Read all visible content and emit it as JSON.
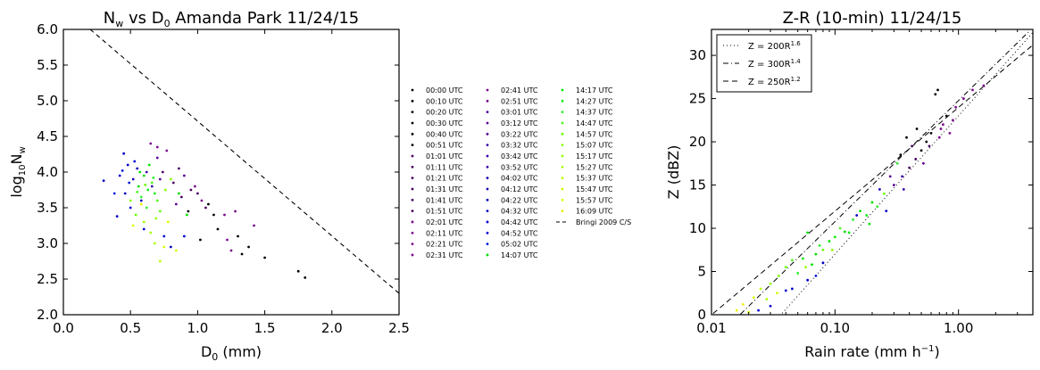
{
  "chart_data": [
    {
      "type": "scatter",
      "title": "N_w vs D_0 Amanda Park 11/24/15",
      "title_parts": {
        "n": "N",
        "n_sub": "w",
        "mid": " vs D",
        "d_sub": "0",
        "rest": " Amanda Park 11/24/15"
      },
      "xlabel": "D_0 (mm)",
      "xlabel_parts": {
        "d": "D",
        "sub": "0",
        "rest": " (mm)"
      },
      "ylabel": "log_10 N_w",
      "ylabel_parts": {
        "log": "log",
        "sub10": "10",
        "n": "N",
        "subw": "w"
      },
      "xlim": [
        0.0,
        2.5
      ],
      "ylim": [
        2.0,
        6.0
      ],
      "xticks": [
        "0.0",
        "0.5",
        "1.0",
        "1.5",
        "2.0",
        "2.5"
      ],
      "yticks": [
        "2.0",
        "2.5",
        "3.0",
        "3.5",
        "4.0",
        "4.5",
        "5.0",
        "5.5",
        "6.0"
      ],
      "reference_line": {
        "name": "Bringi 2009 C/S",
        "x": [
          0.2,
          2.5
        ],
        "y": [
          6.0,
          2.3
        ]
      },
      "legend_placement": "outside-right",
      "series": [
        {
          "name": "00:00 UTC",
          "color": "#000000"
        },
        {
          "name": "00:10 UTC",
          "color": "#000000"
        },
        {
          "name": "00:20 UTC",
          "color": "#000000"
        },
        {
          "name": "00:30 UTC",
          "color": "#000000"
        },
        {
          "name": "00:40 UTC",
          "color": "#000000"
        },
        {
          "name": "00:51 UTC",
          "color": "#000000"
        },
        {
          "name": "01:01 UTC",
          "color": "#4b0062"
        },
        {
          "name": "01:11 UTC",
          "color": "#4b0062"
        },
        {
          "name": "01:21 UTC",
          "color": "#4b0062"
        },
        {
          "name": "01:31 UTC",
          "color": "#4b0062"
        },
        {
          "name": "01:41 UTC",
          "color": "#4b0062"
        },
        {
          "name": "01:51 UTC",
          "color": "#4b0062"
        },
        {
          "name": "02:01 UTC",
          "color": "#7a0a8c"
        },
        {
          "name": "02:11 UTC",
          "color": "#7a0a8c"
        },
        {
          "name": "02:21 UTC",
          "color": "#7a0a8c"
        },
        {
          "name": "02:31 UTC",
          "color": "#7a0a8c"
        },
        {
          "name": "02:41 UTC",
          "color": "#7a0a8c"
        },
        {
          "name": "02:51 UTC",
          "color": "#7a0a8c"
        },
        {
          "name": "03:01 UTC",
          "color": "#5a0096"
        },
        {
          "name": "03:12 UTC",
          "color": "#5a0096"
        },
        {
          "name": "03:22 UTC",
          "color": "#5a0096"
        },
        {
          "name": "03:32 UTC",
          "color": "#3a00a8"
        },
        {
          "name": "03:42 UTC",
          "color": "#3a00a8"
        },
        {
          "name": "03:52 UTC",
          "color": "#3a00a8"
        },
        {
          "name": "04:02 UTC",
          "color": "#1200b4"
        },
        {
          "name": "04:12 UTC",
          "color": "#1200b4"
        },
        {
          "name": "04:22 UTC",
          "color": "#0000c0"
        },
        {
          "name": "04:32 UTC",
          "color": "#0000c8"
        },
        {
          "name": "04:42 UTC",
          "color": "#0000d0"
        },
        {
          "name": "04:52 UTC",
          "color": "#0000d8"
        },
        {
          "name": "05:02 UTC",
          "color": "#0018dd"
        },
        {
          "name": "14:07 UTC",
          "color": "#00dd00"
        },
        {
          "name": "14:17 UTC",
          "color": "#00e600"
        },
        {
          "name": "14:27 UTC",
          "color": "#10ee10"
        },
        {
          "name": "14:37 UTC",
          "color": "#30f030"
        },
        {
          "name": "14:47 UTC",
          "color": "#50f520"
        },
        {
          "name": "14:57 UTC",
          "color": "#66ff00"
        },
        {
          "name": "15:07 UTC",
          "color": "#88ff00"
        },
        {
          "name": "15:17 UTC",
          "color": "#99ff00"
        },
        {
          "name": "15:27 UTC",
          "color": "#aaff00"
        },
        {
          "name": "15:37 UTC",
          "color": "#bbff00"
        },
        {
          "name": "15:47 UTC",
          "color": "#ccff00"
        },
        {
          "name": "15:57 UTC",
          "color": "#ddff00"
        },
        {
          "name": "16:09 UTC",
          "color": "#eeee00"
        }
      ],
      "points": [
        {
          "x": 0.3,
          "y": 3.88,
          "c": "#0000c8"
        },
        {
          "x": 0.4,
          "y": 3.38,
          "c": "#0000c8"
        },
        {
          "x": 0.45,
          "y": 4.26,
          "c": "#0000c8"
        },
        {
          "x": 0.42,
          "y": 3.95,
          "c": "#0000d0"
        },
        {
          "x": 0.48,
          "y": 4.1,
          "c": "#0000d0"
        },
        {
          "x": 0.5,
          "y": 3.5,
          "c": "#0000d0"
        },
        {
          "x": 0.52,
          "y": 3.9,
          "c": "#1200b4"
        },
        {
          "x": 0.55,
          "y": 4.05,
          "c": "#1200b4"
        },
        {
          "x": 0.58,
          "y": 3.6,
          "c": "#0000c0"
        },
        {
          "x": 0.46,
          "y": 3.7,
          "c": "#0000c0"
        },
        {
          "x": 0.53,
          "y": 4.15,
          "c": "#0000d8"
        },
        {
          "x": 0.6,
          "y": 3.2,
          "c": "#0000d8"
        },
        {
          "x": 0.62,
          "y": 4.0,
          "c": "#3a00a8"
        },
        {
          "x": 0.66,
          "y": 3.8,
          "c": "#3a00a8"
        },
        {
          "x": 0.7,
          "y": 4.2,
          "c": "#5a0096"
        },
        {
          "x": 0.72,
          "y": 3.9,
          "c": "#5a0096"
        },
        {
          "x": 0.75,
          "y": 3.1,
          "c": "#0000c8"
        },
        {
          "x": 0.8,
          "y": 2.95,
          "c": "#0000c8"
        },
        {
          "x": 0.65,
          "y": 4.4,
          "c": "#7a0a8c"
        },
        {
          "x": 0.7,
          "y": 4.35,
          "c": "#7a0a8c"
        },
        {
          "x": 0.77,
          "y": 4.3,
          "c": "#7a0a8c"
        },
        {
          "x": 0.74,
          "y": 4.0,
          "c": "#4b0062"
        },
        {
          "x": 0.82,
          "y": 3.85,
          "c": "#4b0062"
        },
        {
          "x": 0.86,
          "y": 4.05,
          "c": "#4b0062"
        },
        {
          "x": 0.9,
          "y": 3.95,
          "c": "#5a0096"
        },
        {
          "x": 0.95,
          "y": 3.75,
          "c": "#4b0062"
        },
        {
          "x": 0.98,
          "y": 3.8,
          "c": "#7a0a8c"
        },
        {
          "x": 1.0,
          "y": 3.7,
          "c": "#4b0062"
        },
        {
          "x": 1.03,
          "y": 3.6,
          "c": "#7a0a8c"
        },
        {
          "x": 1.06,
          "y": 3.5,
          "c": "#4b0062"
        },
        {
          "x": 1.08,
          "y": 3.55,
          "c": "#000000"
        },
        {
          "x": 1.12,
          "y": 3.4,
          "c": "#000000"
        },
        {
          "x": 1.15,
          "y": 3.2,
          "c": "#000000"
        },
        {
          "x": 1.2,
          "y": 3.4,
          "c": "#7a0a8c"
        },
        {
          "x": 1.22,
          "y": 3.05,
          "c": "#7a0a8c"
        },
        {
          "x": 1.25,
          "y": 2.9,
          "c": "#7a0a8c"
        },
        {
          "x": 1.28,
          "y": 3.45,
          "c": "#7a0a8c"
        },
        {
          "x": 1.3,
          "y": 3.1,
          "c": "#000000"
        },
        {
          "x": 1.33,
          "y": 2.85,
          "c": "#000000"
        },
        {
          "x": 1.38,
          "y": 2.95,
          "c": "#000000"
        },
        {
          "x": 1.42,
          "y": 3.25,
          "c": "#7a0a8c"
        },
        {
          "x": 1.5,
          "y": 2.8,
          "c": "#000000"
        },
        {
          "x": 1.75,
          "y": 2.61,
          "c": "#000000"
        },
        {
          "x": 1.8,
          "y": 2.52,
          "c": "#000000"
        },
        {
          "x": 1.02,
          "y": 3.05,
          "c": "#000000"
        },
        {
          "x": 0.93,
          "y": 3.45,
          "c": "#000000"
        },
        {
          "x": 0.88,
          "y": 3.65,
          "c": "#4b0062"
        },
        {
          "x": 0.84,
          "y": 3.55,
          "c": "#5a0096"
        },
        {
          "x": 0.56,
          "y": 3.8,
          "c": "#00dd00"
        },
        {
          "x": 0.6,
          "y": 3.95,
          "c": "#00dd00"
        },
        {
          "x": 0.64,
          "y": 4.1,
          "c": "#00e600"
        },
        {
          "x": 0.68,
          "y": 3.7,
          "c": "#10ee10"
        },
        {
          "x": 0.58,
          "y": 3.65,
          "c": "#30f030"
        },
        {
          "x": 0.62,
          "y": 3.5,
          "c": "#30f030"
        },
        {
          "x": 0.66,
          "y": 3.85,
          "c": "#50f520"
        },
        {
          "x": 0.7,
          "y": 3.6,
          "c": "#50f520"
        },
        {
          "x": 0.72,
          "y": 3.45,
          "c": "#66ff00"
        },
        {
          "x": 0.54,
          "y": 3.4,
          "c": "#66ff00"
        },
        {
          "x": 0.76,
          "y": 3.75,
          "c": "#88ff00"
        },
        {
          "x": 0.8,
          "y": 3.9,
          "c": "#88ff00"
        },
        {
          "x": 0.6,
          "y": 3.3,
          "c": "#99ff00"
        },
        {
          "x": 0.65,
          "y": 3.15,
          "c": "#aaff00"
        },
        {
          "x": 0.68,
          "y": 3.0,
          "c": "#aaff00"
        },
        {
          "x": 0.72,
          "y": 2.75,
          "c": "#bbff00"
        },
        {
          "x": 0.75,
          "y": 2.95,
          "c": "#ccff00"
        },
        {
          "x": 0.84,
          "y": 2.9,
          "c": "#ccff00"
        },
        {
          "x": 0.52,
          "y": 3.25,
          "c": "#ddff00"
        },
        {
          "x": 0.78,
          "y": 3.3,
          "c": "#ddff00"
        },
        {
          "x": 0.58,
          "y": 3.55,
          "c": "#eeee00"
        },
        {
          "x": 0.63,
          "y": 3.75,
          "c": "#10ee10"
        },
        {
          "x": 0.57,
          "y": 4.0,
          "c": "#00e600"
        },
        {
          "x": 0.67,
          "y": 3.92,
          "c": "#30f030"
        },
        {
          "x": 0.55,
          "y": 3.72,
          "c": "#50f520"
        },
        {
          "x": 0.61,
          "y": 3.82,
          "c": "#66ff00"
        },
        {
          "x": 0.5,
          "y": 3.6,
          "c": "#88ff00"
        },
        {
          "x": 0.69,
          "y": 3.35,
          "c": "#99ff00"
        },
        {
          "x": 0.86,
          "y": 3.7,
          "c": "#00dd00"
        },
        {
          "x": 0.92,
          "y": 3.4,
          "c": "#00e600"
        },
        {
          "x": 0.9,
          "y": 3.1,
          "c": "#0000d0"
        },
        {
          "x": 0.44,
          "y": 4.02,
          "c": "#0018dd"
        },
        {
          "x": 0.49,
          "y": 3.85,
          "c": "#0018dd"
        },
        {
          "x": 0.38,
          "y": 3.7,
          "c": "#0018dd"
        }
      ]
    },
    {
      "type": "scatter",
      "title": "Z-R (10-min) 11/24/15",
      "xlabel": "Rain rate (mm h^-1)",
      "xlabel_parts": {
        "main": "Rain rate (mm h",
        "sup": "−1",
        "close": ")"
      },
      "ylabel": "Z (dBZ)",
      "xscale": "log",
      "xlim": [
        0.01,
        4.0
      ],
      "ylim": [
        0,
        33
      ],
      "xticks": [
        {
          "v": 0.01,
          "label": "0.01"
        },
        {
          "v": 0.1,
          "label": "0.10"
        },
        {
          "v": 1.0,
          "label": "1.00"
        }
      ],
      "yticks": [
        "0",
        "5",
        "10",
        "15",
        "20",
        "25",
        "30"
      ],
      "legend_placement": "top-left",
      "lines": [
        {
          "label_main": "Z = 200R",
          "label_sup": "1.6",
          "a": 200,
          "b": 1.6,
          "style": "dotted"
        },
        {
          "label_main": "Z = 300R",
          "label_sup": "1.4",
          "a": 300,
          "b": 1.4,
          "style": "dashdot"
        },
        {
          "label_main": "Z = 250R",
          "label_sup": "1.2",
          "a": 250,
          "b": 1.2,
          "style": "dashed"
        }
      ],
      "points": [
        {
          "x": 0.016,
          "y": 0.5,
          "c": "#eeee00"
        },
        {
          "x": 0.018,
          "y": 1.2,
          "c": "#eeee00"
        },
        {
          "x": 0.02,
          "y": 0.3,
          "c": "#ddff00"
        },
        {
          "x": 0.022,
          "y": 2.0,
          "c": "#ccff00"
        },
        {
          "x": 0.025,
          "y": 3.0,
          "c": "#bbff00"
        },
        {
          "x": 0.028,
          "y": 1.8,
          "c": "#aaff00"
        },
        {
          "x": 0.03,
          "y": 3.6,
          "c": "#99ff00"
        },
        {
          "x": 0.035,
          "y": 4.5,
          "c": "#88ff00"
        },
        {
          "x": 0.04,
          "y": 5.5,
          "c": "#66ff00"
        },
        {
          "x": 0.045,
          "y": 6.3,
          "c": "#50f520"
        },
        {
          "x": 0.05,
          "y": 4.8,
          "c": "#30f030"
        },
        {
          "x": 0.055,
          "y": 6.5,
          "c": "#10ee10"
        },
        {
          "x": 0.06,
          "y": 9.5,
          "c": "#00e600"
        },
        {
          "x": 0.065,
          "y": 5.8,
          "c": "#00dd00"
        },
        {
          "x": 0.07,
          "y": 7.0,
          "c": "#00dd00"
        },
        {
          "x": 0.075,
          "y": 8.0,
          "c": "#30f030"
        },
        {
          "x": 0.08,
          "y": 7.5,
          "c": "#66ff00"
        },
        {
          "x": 0.09,
          "y": 8.5,
          "c": "#00e600"
        },
        {
          "x": 0.1,
          "y": 9.0,
          "c": "#10ee10"
        },
        {
          "x": 0.11,
          "y": 10.0,
          "c": "#50f520"
        },
        {
          "x": 0.12,
          "y": 9.6,
          "c": "#00dd00"
        },
        {
          "x": 0.14,
          "y": 11.0,
          "c": "#30f030"
        },
        {
          "x": 0.16,
          "y": 12.0,
          "c": "#00e600"
        },
        {
          "x": 0.18,
          "y": 11.5,
          "c": "#10ee10"
        },
        {
          "x": 0.2,
          "y": 13.0,
          "c": "#00dd00"
        },
        {
          "x": 0.22,
          "y": 12.5,
          "c": "#30f030"
        },
        {
          "x": 0.25,
          "y": 14.0,
          "c": "#66ff00"
        },
        {
          "x": 0.3,
          "y": 15.0,
          "c": "#5a0096"
        },
        {
          "x": 0.35,
          "y": 16.0,
          "c": "#3a00a8"
        },
        {
          "x": 0.4,
          "y": 17.0,
          "c": "#4b0062"
        },
        {
          "x": 0.45,
          "y": 18.0,
          "c": "#4b0062"
        },
        {
          "x": 0.5,
          "y": 19.0,
          "c": "#000000"
        },
        {
          "x": 0.55,
          "y": 20.0,
          "c": "#000000"
        },
        {
          "x": 0.6,
          "y": 21.0,
          "c": "#000000"
        },
        {
          "x": 0.7,
          "y": 20.5,
          "c": "#7a0a8c"
        },
        {
          "x": 0.75,
          "y": 22.0,
          "c": "#7a0a8c"
        },
        {
          "x": 0.8,
          "y": 23.0,
          "c": "#000000"
        },
        {
          "x": 0.9,
          "y": 22.5,
          "c": "#7a0a8c"
        },
        {
          "x": 0.95,
          "y": 24.0,
          "c": "#7a0a8c"
        },
        {
          "x": 1.1,
          "y": 25.0,
          "c": "#7a0a8c"
        },
        {
          "x": 1.3,
          "y": 26.0,
          "c": "#7a0a8c"
        },
        {
          "x": 1.6,
          "y": 26.5,
          "c": "#7a0a8c"
        },
        {
          "x": 0.65,
          "y": 25.5,
          "c": "#000000"
        },
        {
          "x": 0.68,
          "y": 26.0,
          "c": "#000000"
        },
        {
          "x": 0.34,
          "y": 18.5,
          "c": "#000000"
        },
        {
          "x": 0.38,
          "y": 20.5,
          "c": "#000000"
        },
        {
          "x": 0.42,
          "y": 19.5,
          "c": "#4b0062"
        },
        {
          "x": 0.46,
          "y": 21.5,
          "c": "#000000"
        },
        {
          "x": 0.28,
          "y": 16.0,
          "c": "#5a0096"
        },
        {
          "x": 0.32,
          "y": 17.5,
          "c": "#30f030"
        },
        {
          "x": 0.26,
          "y": 12.0,
          "c": "#0000c8"
        },
        {
          "x": 0.23,
          "y": 14.5,
          "c": "#1200b4"
        },
        {
          "x": 0.045,
          "y": 3.0,
          "c": "#0000c8"
        },
        {
          "x": 0.04,
          "y": 2.8,
          "c": "#0000d0"
        },
        {
          "x": 0.06,
          "y": 4.0,
          "c": "#0000d8"
        },
        {
          "x": 0.07,
          "y": 4.5,
          "c": "#0018dd"
        },
        {
          "x": 0.08,
          "y": 6.0,
          "c": "#0000c0"
        },
        {
          "x": 0.15,
          "y": 11.5,
          "c": "#0000c8"
        },
        {
          "x": 0.03,
          "y": 1.0,
          "c": "#0000c8"
        },
        {
          "x": 0.024,
          "y": 0.5,
          "c": "#0000d0"
        },
        {
          "x": 0.58,
          "y": 19.5,
          "c": "#4b0062"
        },
        {
          "x": 0.72,
          "y": 21.5,
          "c": "#7a0a8c"
        },
        {
          "x": 0.85,
          "y": 21.0,
          "c": "#7a0a8c"
        },
        {
          "x": 0.52,
          "y": 17.5,
          "c": "#5a0096"
        },
        {
          "x": 0.36,
          "y": 14.5,
          "c": "#3a00a8"
        },
        {
          "x": 0.19,
          "y": 10.5,
          "c": "#00e600"
        },
        {
          "x": 0.13,
          "y": 9.5,
          "c": "#10ee10"
        },
        {
          "x": 0.095,
          "y": 7.5,
          "c": "#88ff00"
        },
        {
          "x": 0.058,
          "y": 5.5,
          "c": "#99ff00"
        },
        {
          "x": 0.034,
          "y": 2.5,
          "c": "#ccff00"
        }
      ]
    }
  ]
}
